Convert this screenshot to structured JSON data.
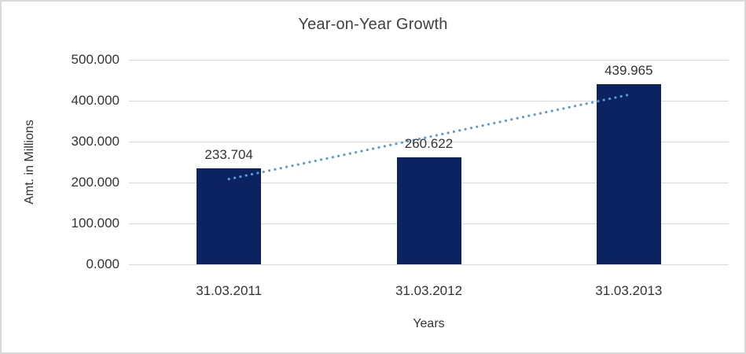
{
  "window": {
    "background": "#ffffff",
    "border_color": "#d9d9d9"
  },
  "chart_data": {
    "type": "bar",
    "title": "Year-on-Year Growth",
    "xlabel": "Years",
    "ylabel": "Amt. in Millions",
    "categories": [
      "31.03.2011",
      "31.03.2012",
      "31.03.2013"
    ],
    "values": [
      233.704,
      260.622,
      439.965
    ],
    "value_labels": [
      "233.704",
      "260.622",
      "439.965"
    ],
    "ylim": [
      0,
      500
    ],
    "ytick_step": 100,
    "ytick_labels": [
      "0.000",
      "100.000",
      "200.000",
      "300.000",
      "400.000",
      "500.000"
    ],
    "grid": true,
    "legend": "none",
    "bar_color": "#0c2362",
    "gridline_color": "#d9d9d9",
    "text_color": "#333333",
    "title_color": "#404040",
    "trendline": {
      "type": "linear",
      "style": "round-dot",
      "color": "#5b9bd5"
    }
  }
}
